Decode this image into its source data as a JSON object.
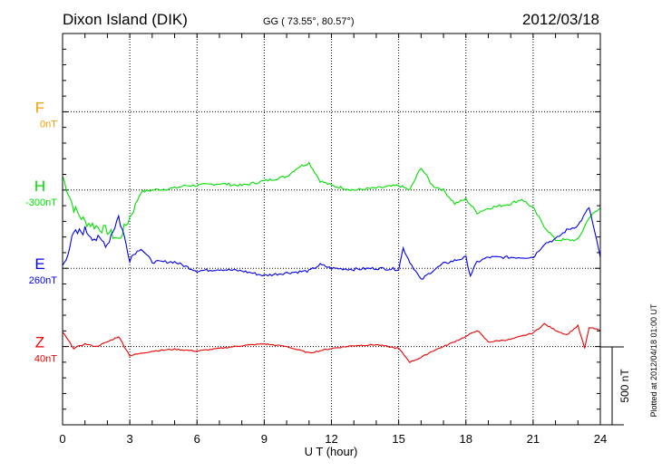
{
  "header": {
    "station": "Dixon Island (DIK)",
    "coords": "GG ( 73.55°,  80.57°)",
    "date": "2012/03/18"
  },
  "footer": {
    "plotted": "Plotted at 2012/04/18 01:00 UT",
    "scale_label": "500 nT"
  },
  "chart_data": {
    "type": "line",
    "title": "Dixon Island (DIK)",
    "xlabel": "U T (hour)",
    "xlim": [
      0,
      24
    ],
    "xticks": [
      "0",
      "3",
      "6",
      "9",
      "12",
      "15",
      "18",
      "21",
      "24"
    ],
    "scale_bar_nT": 500,
    "grid": true,
    "series": [
      {
        "name": "F",
        "baseline_label": "0nT",
        "color": "#f0a000",
        "offset": 2000,
        "x": [],
        "values": []
      },
      {
        "name": "H",
        "baseline_label": "-300nT",
        "color": "#00e000",
        "offset": 1500,
        "x": [
          0,
          0.5,
          1,
          1.5,
          2,
          2.5,
          3,
          3.5,
          4,
          5,
          5.5,
          6,
          7,
          8,
          9,
          10,
          10.5,
          11,
          11.5,
          12,
          13,
          14,
          15,
          15.5,
          16,
          16.5,
          17,
          17.5,
          18,
          18.5,
          19,
          20,
          20.5,
          21,
          21.5,
          22,
          23,
          23.5,
          24
        ],
        "values": [
          87,
          -116,
          -203,
          -232,
          -261,
          -319,
          -174,
          -12,
          0,
          12,
          29,
          29,
          41,
          29,
          58,
          87,
          145,
          174,
          58,
          29,
          0,
          12,
          29,
          0,
          145,
          29,
          0,
          -87,
          -58,
          -145,
          -116,
          -87,
          -58,
          -116,
          -232,
          -319,
          -319,
          -174,
          -116
        ]
      },
      {
        "name": "E",
        "baseline_label": "260nT",
        "color": "#0000ee",
        "offset": 1000,
        "x": [
          0,
          0.5,
          1,
          1.5,
          2,
          2.5,
          3,
          3.5,
          4,
          5,
          6,
          7,
          8,
          9,
          10,
          11,
          11.5,
          12,
          13,
          14,
          15,
          15.2,
          15.5,
          16,
          16.5,
          17,
          18,
          18.2,
          18.5,
          19,
          20,
          21,
          21.5,
          22,
          22.5,
          23,
          23.5,
          24
        ],
        "values": [
          12,
          215,
          244,
          186,
          157,
          331,
          70,
          128,
          41,
          41,
          -17,
          -6,
          -17,
          -46,
          -29,
          -17,
          23,
          0,
          -6,
          0,
          -6,
          128,
          41,
          -75,
          -17,
          29,
          70,
          -46,
          41,
          70,
          70,
          70,
          157,
          186,
          244,
          273,
          389,
          70
        ]
      },
      {
        "name": "Z",
        "baseline_label": "40nT",
        "color": "#ee0000",
        "offset": 500,
        "x": [
          0,
          0.5,
          1,
          1.5,
          2,
          2.5,
          3,
          4,
          5,
          6,
          7,
          8,
          9,
          10,
          11,
          12,
          13,
          14,
          15,
          15.5,
          16,
          16.5,
          17,
          18,
          18.5,
          19,
          20,
          21,
          21.5,
          22,
          22.5,
          23,
          23.3,
          23.5,
          24
        ],
        "values": [
          93,
          -12,
          17,
          0,
          29,
          64,
          -58,
          -29,
          -17,
          -29,
          -12,
          6,
          17,
          0,
          -41,
          -12,
          6,
          12,
          -12,
          -99,
          -70,
          -29,
          0,
          64,
          104,
          29,
          46,
          87,
          145,
          104,
          75,
          133,
          -12,
          122,
          104
        ]
      }
    ]
  }
}
